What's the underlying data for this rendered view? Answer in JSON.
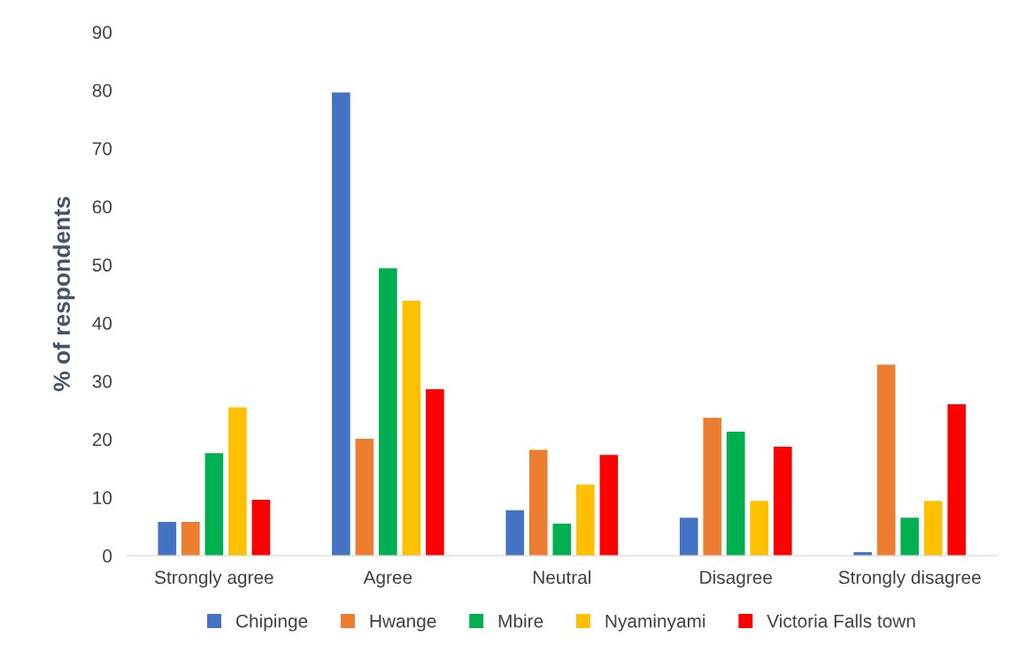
{
  "chart_data": {
    "type": "bar",
    "ylabel": "% of respondents",
    "categories": [
      "Strongly agree",
      "Agree",
      "Neutral",
      "Disagree",
      "Strongly disagree"
    ],
    "series": [
      {
        "name": "Chipinge",
        "color": "#4472c4",
        "values": [
          5.8,
          79.6,
          7.8,
          6.5,
          0.6
        ]
      },
      {
        "name": "Hwange",
        "color": "#ed7d31",
        "values": [
          5.8,
          20.1,
          18.2,
          23.7,
          32.8
        ]
      },
      {
        "name": "Mbire",
        "color": "#00b050",
        "values": [
          17.6,
          49.4,
          5.5,
          21.3,
          6.5
        ]
      },
      {
        "name": "Nyaminyami",
        "color": "#ffc000",
        "values": [
          25.5,
          43.8,
          12.2,
          9.4,
          9.4
        ]
      },
      {
        "name": "Victoria Falls town",
        "color": "#ff0000",
        "values": [
          9.6,
          28.6,
          17.3,
          18.7,
          26.0
        ]
      }
    ],
    "ylim": [
      0,
      90
    ],
    "yticks": [
      0,
      10,
      20,
      30,
      40,
      50,
      60,
      70,
      80,
      90
    ],
    "grid": false,
    "legend": "bottom"
  }
}
